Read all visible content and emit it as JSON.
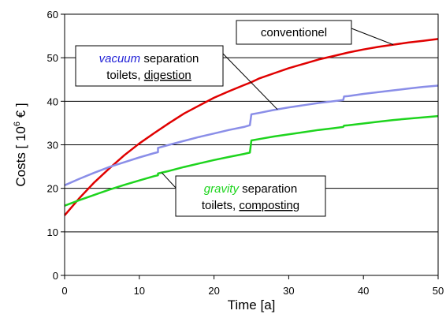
{
  "chart_data": {
    "type": "line",
    "xlabel": "Time [a]",
    "ylabel": "Costs [ 10^6 € ]",
    "ylabel_parts": {
      "prefix": "Costs [ 10",
      "exponent": "6",
      "suffix": " € ]"
    },
    "xlim": [
      0,
      50
    ],
    "ylim": [
      0,
      60
    ],
    "xticks": [
      "0",
      "10",
      "20",
      "30",
      "40",
      "50"
    ],
    "yticks": [
      "0",
      "10",
      "20",
      "30",
      "40",
      "50",
      "60"
    ],
    "grid": "horizontal",
    "series": [
      {
        "name": "conventionel",
        "color": "#e00000",
        "points": [
          [
            0,
            13.8
          ],
          [
            2,
            17.8
          ],
          [
            4,
            21.4
          ],
          [
            6,
            24.6
          ],
          [
            8,
            27.6
          ],
          [
            10,
            30.3
          ],
          [
            12,
            32.7
          ],
          [
            14,
            35.0
          ],
          [
            16,
            37.2
          ],
          [
            18,
            39.0
          ],
          [
            20,
            40.8
          ],
          [
            22,
            42.3
          ],
          [
            24,
            43.7
          ],
          [
            25,
            44.4
          ],
          [
            26,
            45.2
          ],
          [
            28,
            46.4
          ],
          [
            30,
            47.6
          ],
          [
            32,
            48.6
          ],
          [
            34,
            49.6
          ],
          [
            36,
            50.4
          ],
          [
            38,
            51.2
          ],
          [
            40,
            51.9
          ],
          [
            42,
            52.5
          ],
          [
            44,
            53.0
          ],
          [
            46,
            53.5
          ],
          [
            48,
            53.9
          ],
          [
            50,
            54.3
          ]
        ]
      },
      {
        "name": "vacuum separation toilets, digestion",
        "color": "#8a8ee8",
        "points": [
          [
            0,
            20.7
          ],
          [
            2,
            22.2
          ],
          [
            4,
            23.6
          ],
          [
            6,
            24.9
          ],
          [
            8,
            26.0
          ],
          [
            10,
            27.1
          ],
          [
            12,
            28.1
          ],
          [
            12.5,
            28.3
          ],
          [
            12.5,
            29.3
          ],
          [
            14,
            30.0
          ],
          [
            16,
            30.9
          ],
          [
            18,
            31.8
          ],
          [
            20,
            32.6
          ],
          [
            22,
            33.4
          ],
          [
            24,
            34.1
          ],
          [
            24.8,
            34.5
          ],
          [
            25,
            37.0
          ],
          [
            26,
            37.3
          ],
          [
            28,
            38.0
          ],
          [
            30,
            38.6
          ],
          [
            32,
            39.1
          ],
          [
            34,
            39.6
          ],
          [
            36,
            40.0
          ],
          [
            37.3,
            40.3
          ],
          [
            37.4,
            41.1
          ],
          [
            38,
            41.2
          ],
          [
            40,
            41.7
          ],
          [
            42,
            42.1
          ],
          [
            44,
            42.5
          ],
          [
            46,
            42.9
          ],
          [
            48,
            43.3
          ],
          [
            50,
            43.6
          ]
        ]
      },
      {
        "name": "gravity separation toilets, composting",
        "color": "#1ed41e",
        "points": [
          [
            0,
            16.0
          ],
          [
            2,
            17.3
          ],
          [
            4,
            18.5
          ],
          [
            6,
            19.7
          ],
          [
            8,
            20.8
          ],
          [
            10,
            21.8
          ],
          [
            12,
            22.8
          ],
          [
            12.5,
            23.0
          ],
          [
            12.5,
            23.4
          ],
          [
            14,
            24.0
          ],
          [
            16,
            24.9
          ],
          [
            18,
            25.7
          ],
          [
            20,
            26.5
          ],
          [
            22,
            27.2
          ],
          [
            24,
            27.9
          ],
          [
            24.8,
            28.2
          ],
          [
            25,
            31.0
          ],
          [
            26,
            31.3
          ],
          [
            28,
            31.9
          ],
          [
            30,
            32.4
          ],
          [
            32,
            32.9
          ],
          [
            34,
            33.4
          ],
          [
            36,
            33.8
          ],
          [
            37.3,
            34.1
          ],
          [
            37.4,
            34.4
          ],
          [
            38,
            34.5
          ],
          [
            40,
            34.9
          ],
          [
            42,
            35.3
          ],
          [
            44,
            35.7
          ],
          [
            46,
            36.0
          ],
          [
            48,
            36.3
          ],
          [
            50,
            36.6
          ]
        ]
      }
    ],
    "annotations": {
      "conventional": {
        "text": "conventionel"
      },
      "vacuum": {
        "emph": "vacuum",
        "line1_rest": " separation",
        "line2_a": "toilets, ",
        "line2_b": "digestion",
        "emph_color": "#1f1fd6"
      },
      "gravity": {
        "emph": "gravity",
        "line1_rest": " separation",
        "line2_a": "toilets, ",
        "line2_b": "composting",
        "emph_color": "#1ed41e"
      }
    }
  }
}
